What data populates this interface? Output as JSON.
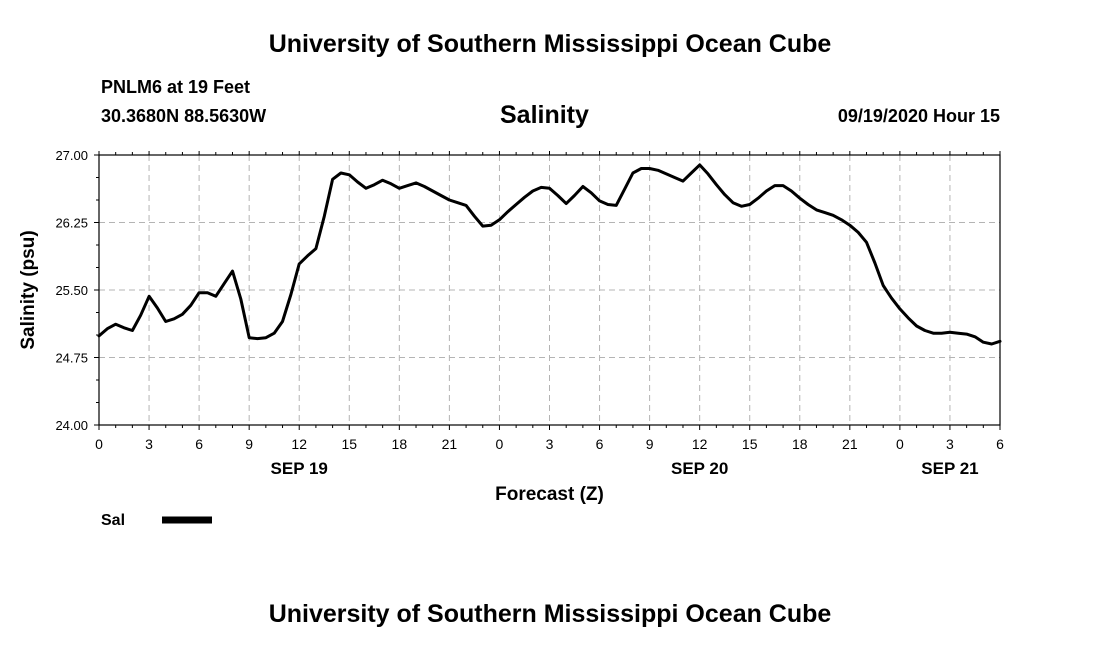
{
  "header": {
    "title": "University of Southern Mississippi Ocean Cube",
    "station_line": "PNLM6 at 19 Feet",
    "coords": "30.3680N 88.5630W",
    "variable": "Salinity",
    "timestamp": "09/19/2020 Hour 15"
  },
  "footer": {
    "title": "University of Southern Mississippi Ocean Cube"
  },
  "chart_data": {
    "type": "line",
    "title": "Salinity",
    "xlabel": "Forecast (Z)",
    "ylabel": "Salinity (psu)",
    "ylim": [
      24.0,
      27.0
    ],
    "xlim": [
      0,
      54
    ],
    "y_ticks": [
      "24.00",
      "24.75",
      "25.50",
      "26.25",
      "27.00"
    ],
    "x_ticks": [
      "0",
      "3",
      "6",
      "9",
      "12",
      "15",
      "18",
      "21",
      "0",
      "3",
      "6",
      "9",
      "12",
      "15",
      "18",
      "21",
      "0",
      "3",
      "6"
    ],
    "date_labels": [
      {
        "label": "SEP 19",
        "hour": 12
      },
      {
        "label": "SEP 20",
        "hour": 36
      },
      {
        "label": "SEP 21",
        "hour": 51
      }
    ],
    "grid": true,
    "legend": [
      {
        "name": "Sal",
        "color": "#000000"
      }
    ],
    "series": [
      {
        "name": "Sal",
        "x": [
          0,
          0.5,
          1,
          1.5,
          2,
          2.5,
          3,
          3.5,
          4,
          4.5,
          5,
          5.5,
          6,
          6.5,
          7,
          7.5,
          8,
          8.5,
          9,
          9.5,
          10,
          10.5,
          11,
          11.5,
          12,
          12.5,
          13,
          13.5,
          14,
          14.5,
          15,
          15.5,
          16,
          16.5,
          17,
          17.5,
          18,
          18.5,
          19,
          19.5,
          20,
          20.5,
          21,
          21.5,
          22,
          22.5,
          23,
          23.5,
          24,
          24.5,
          25,
          25.5,
          26,
          26.5,
          27,
          27.5,
          28,
          28.5,
          29,
          29.5,
          30,
          30.5,
          31,
          31.5,
          32,
          32.5,
          33,
          33.5,
          34,
          34.5,
          35,
          35.5,
          36,
          36.5,
          37,
          37.5,
          38,
          38.5,
          39,
          39.5,
          40,
          40.5,
          41,
          41.5,
          42,
          42.5,
          43,
          43.5,
          44,
          44.5,
          45,
          45.5,
          46,
          46.5,
          47,
          47.5,
          48,
          48.5,
          49,
          49.5,
          50,
          50.5,
          51,
          51.5,
          52,
          52.5,
          53,
          53.5,
          54
        ],
        "values": [
          24.99,
          25.07,
          25.12,
          25.08,
          25.05,
          25.22,
          25.43,
          25.3,
          25.15,
          25.18,
          25.23,
          25.33,
          25.47,
          25.47,
          25.43,
          25.57,
          25.71,
          25.4,
          24.97,
          24.96,
          24.97,
          25.02,
          25.15,
          25.45,
          25.79,
          25.88,
          25.96,
          26.32,
          26.73,
          26.8,
          26.78,
          26.7,
          26.63,
          26.67,
          26.72,
          26.68,
          26.63,
          26.66,
          26.69,
          26.65,
          26.6,
          26.55,
          26.5,
          26.47,
          26.44,
          26.32,
          26.21,
          26.22,
          26.28,
          26.37,
          26.45,
          26.53,
          26.6,
          26.64,
          26.63,
          26.55,
          26.46,
          26.55,
          26.65,
          26.58,
          26.49,
          26.45,
          26.44,
          26.62,
          26.8,
          26.85,
          26.85,
          26.83,
          26.79,
          26.75,
          26.71,
          26.8,
          26.89,
          26.79,
          26.67,
          26.56,
          26.47,
          26.43,
          26.45,
          26.52,
          26.6,
          26.66,
          26.66,
          26.6,
          26.52,
          26.45,
          26.39,
          26.36,
          26.33,
          26.28,
          26.22,
          26.14,
          26.03,
          25.8,
          25.55,
          25.41,
          25.29,
          25.19,
          25.1,
          25.05,
          25.02,
          25.02,
          25.03,
          25.02,
          25.01,
          24.98,
          24.92,
          24.9,
          24.93
        ]
      }
    ]
  }
}
